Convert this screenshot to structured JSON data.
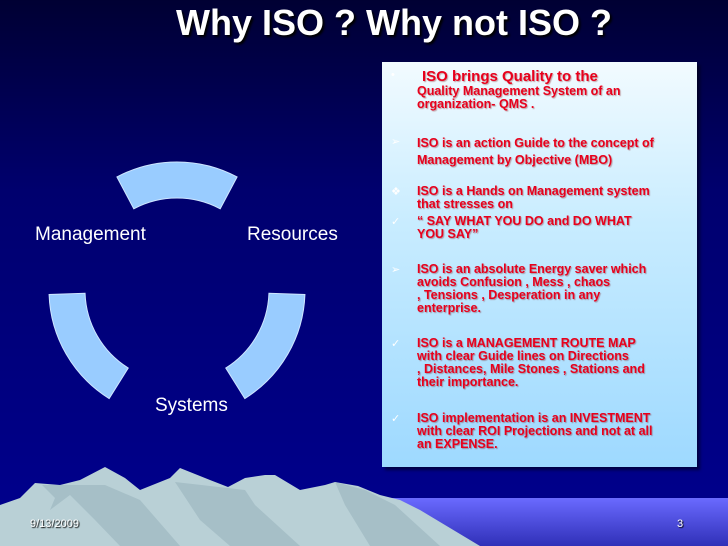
{
  "slide": {
    "title": "Why ISO ? Why not ISO ?",
    "footer_date": "9/13/2009",
    "page_number": "3"
  },
  "diagram": {
    "type": "cycle",
    "labels": [
      "Management",
      "Resources",
      "Systems"
    ],
    "segment_color": "#99ccff"
  },
  "bullets": [
    {
      "icon": "dot-bullet-icon",
      "lead": "ISO  brings  Quality to the",
      "text": "Quality  Management System of an\norganization- QMS ."
    },
    {
      "icon": "arrow-bullet-icon",
      "text": "ISO is an action Guide to the concept of\n Management by Objective (MBO)"
    },
    {
      "icon": "diamond-bullet-icon",
      "text": "ISO is a Hands on Management system\nthat stresses on"
    },
    {
      "icon": "check-bullet-icon",
      "text": "“ SAY WHAT YOU DO  and DO WHAT\nYOU SAY”"
    },
    {
      "icon": "arrow-bullet-icon",
      "text": "ISO is an absolute Energy  saver  which\navoids Confusion , Mess ,  chaos\n, Tensions , Desperation in any\nenterprise."
    },
    {
      "icon": "check-bullet-icon",
      "text": "ISO is a MANAGEMENT ROUTE MAP\nwith clear Guide lines on Directions\n, Distances, Mile Stones , Stations  and\ntheir importance."
    },
    {
      "icon": "check-bullet-icon",
      "text": "ISO implementation  is an INVESTMENT\nwith clear ROI  Projections and  not at all\nan EXPENSE."
    }
  ],
  "colors": {
    "text_red": "#e8001c",
    "background": "#00008b"
  }
}
